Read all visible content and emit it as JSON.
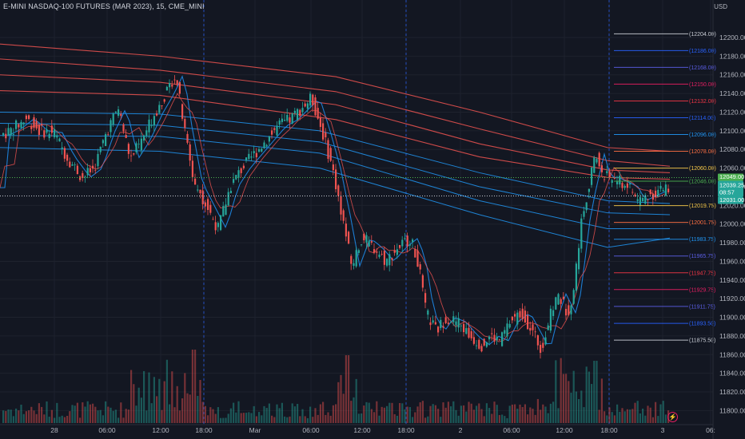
{
  "header": {
    "title": "E-MINI NASDAQ-100 FUTURES (MAR 2023), 15, CME_MINI",
    "currency": "USD"
  },
  "colors": {
    "background": "#131722",
    "up": "#26a69a",
    "down": "#ef5350",
    "grid": "#1e222d",
    "ema_red": "#ef5350",
    "ema_blue": "#2196f3",
    "divider": "#2962ff"
  },
  "price_axis": {
    "ticks": [
      "12200.00",
      "12180.00",
      "12160.00",
      "12140.00",
      "12120.00",
      "12100.00",
      "12080.00",
      "12060.00",
      "12040.00",
      "12020.00",
      "12000.00",
      "11980.00",
      "11960.00",
      "11940.00",
      "11920.00",
      "11900.00",
      "11880.00",
      "11860.00",
      "11840.00",
      "11820.00",
      "11800.00"
    ]
  },
  "time_axis": {
    "labels": [
      "28",
      "06:00",
      "12:00",
      "18:00",
      "Mar",
      "06:00",
      "12:00",
      "18:00",
      "2",
      "06:00",
      "12:00",
      "18:00",
      "3",
      "06:"
    ]
  },
  "levels": [
    {
      "label": "(12204.00)",
      "color": "#c9cdd5"
    },
    {
      "label": "(12186.00)",
      "color": "#2962ff"
    },
    {
      "label": "(12168.00)",
      "color": "#5b5ee6"
    },
    {
      "label": "(12150.00)",
      "color": "#e91e63"
    },
    {
      "label": "(12132.00)",
      "color": "#f23645"
    },
    {
      "label": "(12114.00)",
      "color": "#2962ff"
    },
    {
      "label": "(12096.00)",
      "color": "#2196f3"
    },
    {
      "label": "(12078.00)",
      "color": "#ff7043"
    },
    {
      "label": "(12060.00)",
      "color": "#f7c948"
    },
    {
      "label": "(12046.00)",
      "color": "#4caf50"
    },
    {
      "label": "(12019.75)",
      "color": "#f7c948"
    },
    {
      "label": "(12001.75)",
      "color": "#ff7043"
    },
    {
      "label": "(11983.75)",
      "color": "#2196f3"
    },
    {
      "label": "(11965.75)",
      "color": "#5b5ee6"
    },
    {
      "label": "(11947.75)",
      "color": "#f23645"
    },
    {
      "label": "(11929.75)",
      "color": "#e91e63"
    },
    {
      "label": "(11911.75)",
      "color": "#5b5ee6"
    },
    {
      "label": "(11893.50)",
      "color": "#2962ff"
    },
    {
      "label": "(11875.50)",
      "color": "#c9cdd5"
    }
  ],
  "price_tags": {
    "upper": "12049.00",
    "current": "12039.25",
    "countdown": "08:57",
    "lower": "12031.00"
  }
}
